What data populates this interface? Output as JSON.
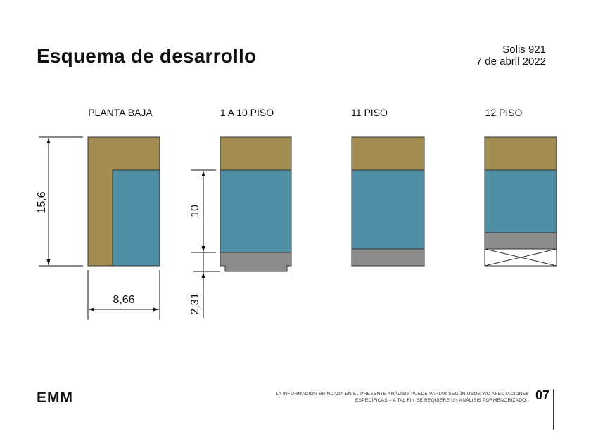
{
  "header": {
    "title": "Esquema de desarrollo",
    "project": "Solis 921",
    "date": "7 de abril 2022"
  },
  "schemes": [
    {
      "label": "PLANTA BAJA"
    },
    {
      "label": "1 A 10 PISO"
    },
    {
      "label": "11 PISO"
    },
    {
      "label": "12 PISO"
    }
  ],
  "dimensions": {
    "depth": "15,6",
    "width": "8,66",
    "block": "10",
    "setback": "2,31"
  },
  "colors": {
    "gold": "#a48d50",
    "blue": "#4f8fa6",
    "gray": "#8c8c8c"
  },
  "footer": {
    "logo": "EMM",
    "disclaimer_line1": "LA INFORMACIÓN BRINDADA EN EL PRESENTE ANÁLISIS PUEDE VARIAR SEGÚN USOS Y/O AFECTACIONES",
    "disclaimer_line2": "ESPECÍFICAS – A TAL FIN SE REQUIERE UN ANÁLISIS PORMENORIZADO.-",
    "page_number": "07"
  }
}
